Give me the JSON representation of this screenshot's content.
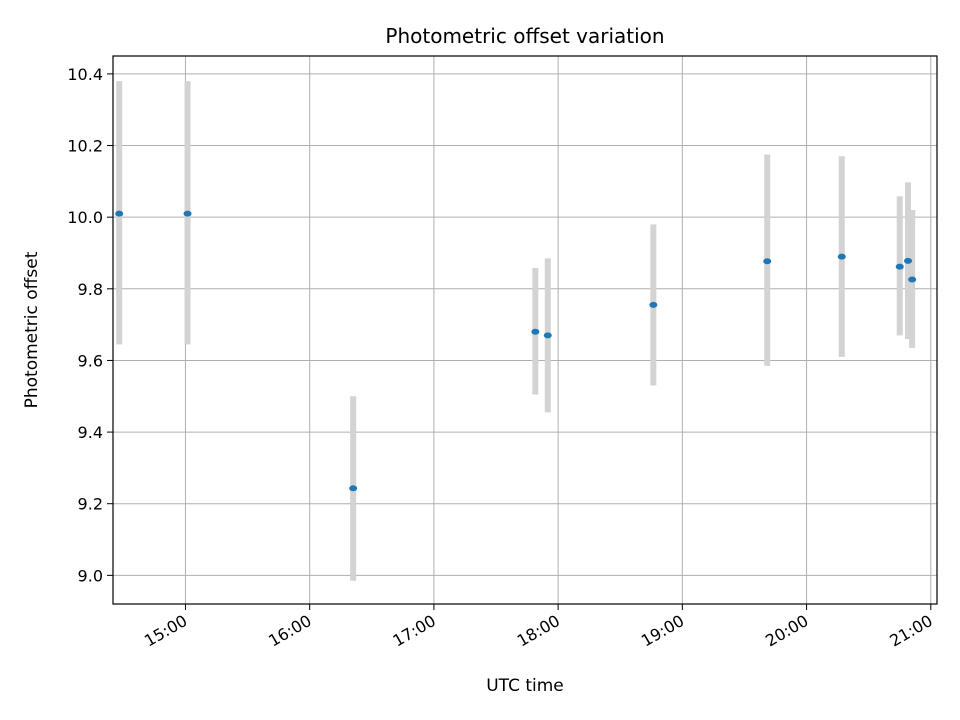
{
  "chart_data": {
    "type": "scatter",
    "title": "Photometric offset variation",
    "xlabel": "UTC time",
    "ylabel": "Photometric offset",
    "x_axis_kind": "time",
    "xlim": [
      "14:25",
      "21:03"
    ],
    "ylim": [
      8.92,
      10.45
    ],
    "grid": true,
    "legend": "none",
    "x_ticks": [
      "15:00",
      "16:00",
      "17:00",
      "18:00",
      "19:00",
      "20:00",
      "21:00"
    ],
    "y_ticks": [
      9.0,
      9.2,
      9.4,
      9.6,
      9.8,
      10.0,
      10.2,
      10.4
    ],
    "y_tick_labels": [
      "9.0",
      "9.2",
      "9.4",
      "9.6",
      "9.8",
      "10.0",
      "10.2",
      "10.4"
    ],
    "marker_color": "#1f77b4",
    "errorbar_color": "#d3d3d3",
    "points": [
      {
        "time": "14:28",
        "y": 10.01,
        "ylow": 9.645,
        "yhigh": 10.38
      },
      {
        "time": "15:01",
        "y": 10.01,
        "ylow": 9.645,
        "yhigh": 10.38
      },
      {
        "time": "16:21",
        "y": 9.243,
        "ylow": 8.985,
        "yhigh": 9.5
      },
      {
        "time": "17:49",
        "y": 9.68,
        "ylow": 9.505,
        "yhigh": 9.858
      },
      {
        "time": "17:55",
        "y": 9.67,
        "ylow": 9.455,
        "yhigh": 9.885
      },
      {
        "time": "18:46",
        "y": 9.755,
        "ylow": 9.53,
        "yhigh": 9.98
      },
      {
        "time": "19:41",
        "y": 9.877,
        "ylow": 9.585,
        "yhigh": 10.175
      },
      {
        "time": "20:17",
        "y": 9.89,
        "ylow": 9.61,
        "yhigh": 10.17
      },
      {
        "time": "20:45",
        "y": 9.862,
        "ylow": 9.67,
        "yhigh": 10.058
      },
      {
        "time": "20:49",
        "y": 9.878,
        "ylow": 9.66,
        "yhigh": 10.097
      },
      {
        "time": "20:51",
        "y": 9.826,
        "ylow": 9.635,
        "yhigh": 10.02
      }
    ]
  }
}
